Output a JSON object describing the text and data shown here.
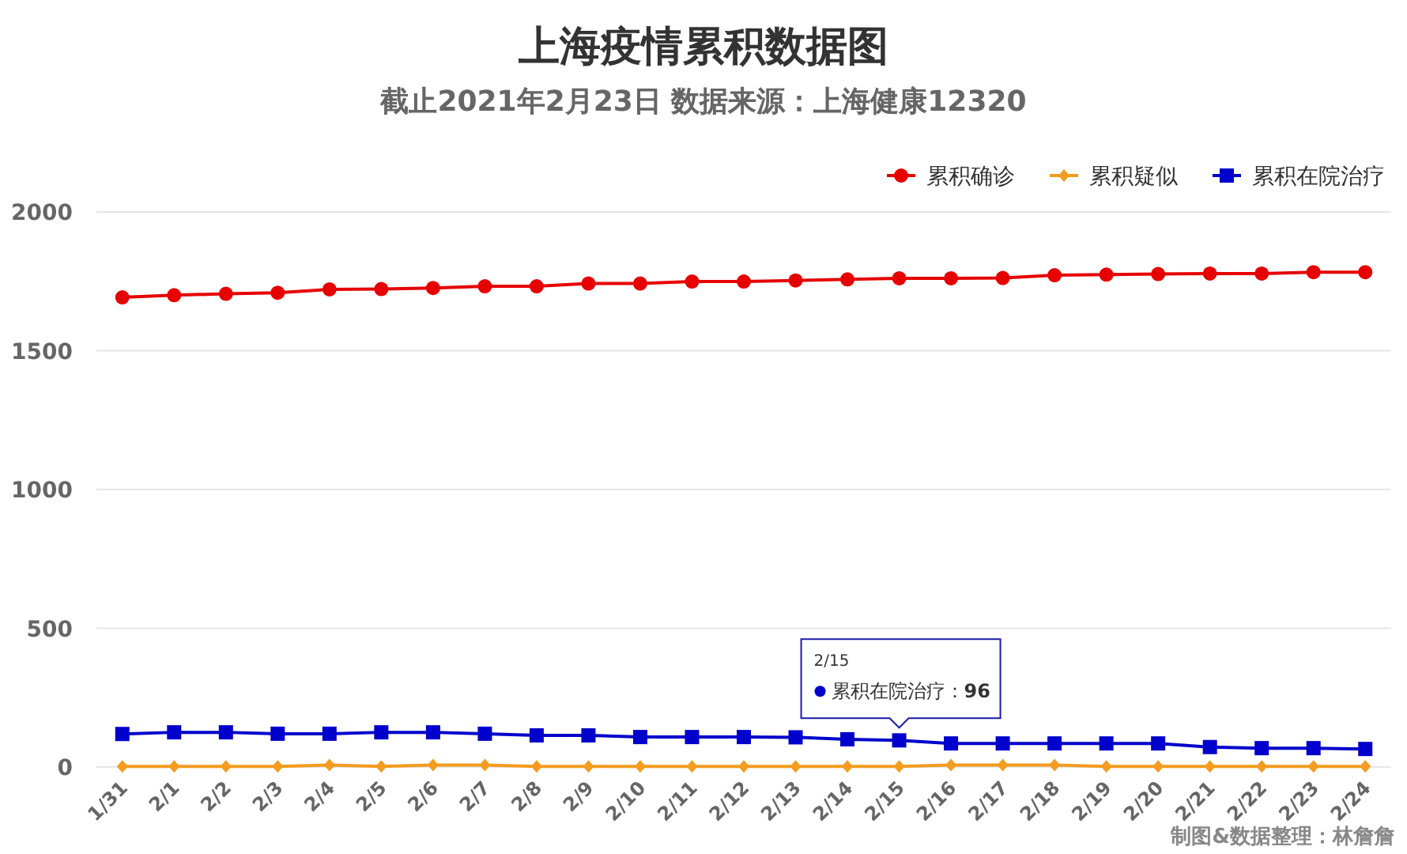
{
  "chart_data": {
    "type": "line",
    "title": "上海疫情累积数据图",
    "subtitle": "截止2021年2月23日 数据来源：上海健康12320",
    "categories": [
      "1/31",
      "2/1",
      "2/2",
      "2/3",
      "2/4",
      "2/5",
      "2/6",
      "2/7",
      "2/8",
      "2/9",
      "2/10",
      "2/11",
      "2/12",
      "2/13",
      "2/14",
      "2/15",
      "2/16",
      "2/17",
      "2/18",
      "2/19",
      "2/20",
      "2/21",
      "2/22",
      "2/23",
      "2/24"
    ],
    "series": [
      {
        "name": "累积确诊",
        "color": "#e60000",
        "marker": "circle",
        "values": [
          1692,
          1700,
          1705,
          1709,
          1721,
          1722,
          1726,
          1732,
          1732,
          1742,
          1742,
          1749,
          1749,
          1753,
          1757,
          1761,
          1761,
          1762,
          1772,
          1774,
          1776,
          1778,
          1778,
          1783,
          1783
        ]
      },
      {
        "name": "累积疑似",
        "color": "#f39c1f",
        "marker": "diamond",
        "values": [
          2,
          2,
          2,
          2,
          7,
          2,
          7,
          7,
          2,
          2,
          2,
          2,
          2,
          2,
          2,
          2,
          7,
          7,
          7,
          2,
          2,
          2,
          2,
          2,
          2
        ]
      },
      {
        "name": "累积在院治疗",
        "color": "#0000cc",
        "marker": "square",
        "values": [
          119,
          125,
          125,
          120,
          120,
          125,
          125,
          120,
          114,
          114,
          108,
          108,
          108,
          107,
          100,
          96,
          85,
          85,
          85,
          85,
          85,
          72,
          68,
          68,
          65
        ]
      }
    ],
    "ylim": [
      0,
      2000
    ],
    "yticks": [
      0,
      500,
      1000,
      1500,
      2000
    ],
    "grid": "y",
    "legend": "top right",
    "line_style": "solid",
    "annotations": [
      "2/15",
      {
        "text": "累积在院治疗：**96**",
        "x": "2/15",
        "y": 96
      },
      "制图&数据整理：林詹詹"
    ]
  }
}
